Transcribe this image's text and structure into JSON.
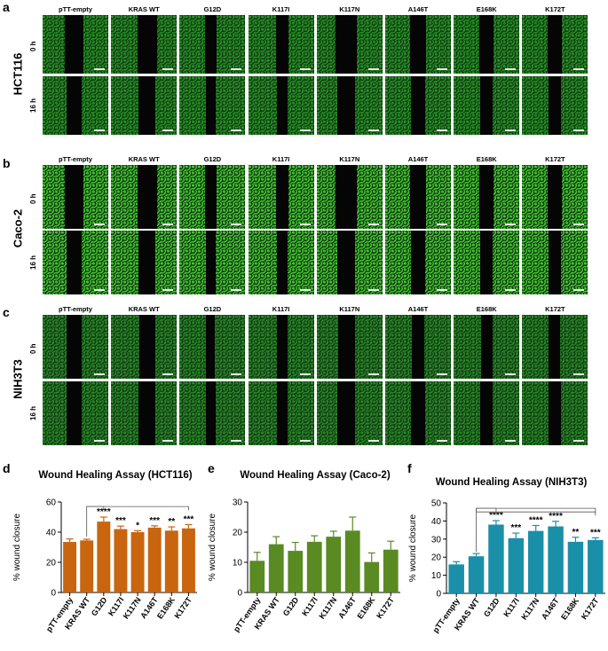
{
  "panels": {
    "a": "a",
    "b": "b",
    "c": "c",
    "d": "d",
    "e": "e",
    "f": "f"
  },
  "conditions": [
    "pTT-empty",
    "KRAS WT",
    "G12D",
    "K117I",
    "K117N",
    "A146T",
    "E168K",
    "K172T"
  ],
  "time_labels": {
    "t0": "0 h",
    "t16": "16 h"
  },
  "microscopy": [
    {
      "cell_line": "HCT116",
      "color": "#1c8a1c"
    },
    {
      "cell_line": "Caco-2",
      "color": "#3cbf28"
    },
    {
      "cell_line": "NIH3T3",
      "color": "#1f7f1f"
    }
  ],
  "chart_data": [
    {
      "type": "bar",
      "title": "Wound Healing Assay (HCT116)",
      "ylabel": "% wound closure",
      "xlabel": "",
      "categories": [
        "pTT-empty",
        "KRAS WT",
        "G12D",
        "K117I",
        "K117N",
        "A146T",
        "E168K",
        "K172T"
      ],
      "values": [
        33.5,
        34.5,
        47,
        42,
        40,
        43,
        41,
        42.5
      ],
      "errors": [
        2,
        0.8,
        3,
        2,
        1,
        1.2,
        2.5,
        2.5
      ],
      "ylim": [
        0,
        60
      ],
      "yticks": [
        "0",
        "20",
        "40",
        "60"
      ],
      "significance": [
        "",
        "",
        "****",
        "***",
        "*",
        "***",
        "**",
        "***"
      ],
      "color": "#c8650e"
    },
    {
      "type": "bar",
      "title": "Wound Healing Assay (Caco-2)",
      "ylabel": "% wound closure",
      "xlabel": "",
      "categories": [
        "pTT-empty",
        "KRAS WT",
        "G12D",
        "K117I",
        "K117N",
        "A146T",
        "E168K",
        "K172T"
      ],
      "values": [
        10.5,
        16,
        13.8,
        16.8,
        18.5,
        20.5,
        10.1,
        14.2
      ],
      "errors": [
        2.8,
        2.5,
        2.8,
        2,
        1.8,
        4.5,
        3,
        2.8
      ],
      "ylim": [
        0,
        30
      ],
      "yticks": [
        "0",
        "10",
        "20",
        "30"
      ],
      "significance": [
        "",
        "",
        "",
        "",
        "",
        "",
        "",
        ""
      ],
      "color": "#5a8a22"
    },
    {
      "type": "bar",
      "title": "Wound Healing Assay (NIH3T3)",
      "ylabel": "% wound closure",
      "xlabel": "",
      "categories": [
        "pTT-empty",
        "KRAS WT",
        "G12D",
        "K117I",
        "K117N",
        "A146T",
        "E168K",
        "K172T"
      ],
      "values": [
        16,
        20.5,
        38,
        30.5,
        34.5,
        37,
        28.5,
        29.5
      ],
      "errors": [
        1.5,
        1.5,
        2.2,
        2.8,
        3,
        2.8,
        2.5,
        1.2
      ],
      "ylim": [
        0,
        50
      ],
      "yticks": [
        "0",
        "10",
        "20",
        "30",
        "40",
        "50"
      ],
      "significance": [
        "",
        "",
        "****",
        "***",
        "****",
        "****",
        "**",
        "***"
      ],
      "color": "#1a8fa8"
    }
  ]
}
